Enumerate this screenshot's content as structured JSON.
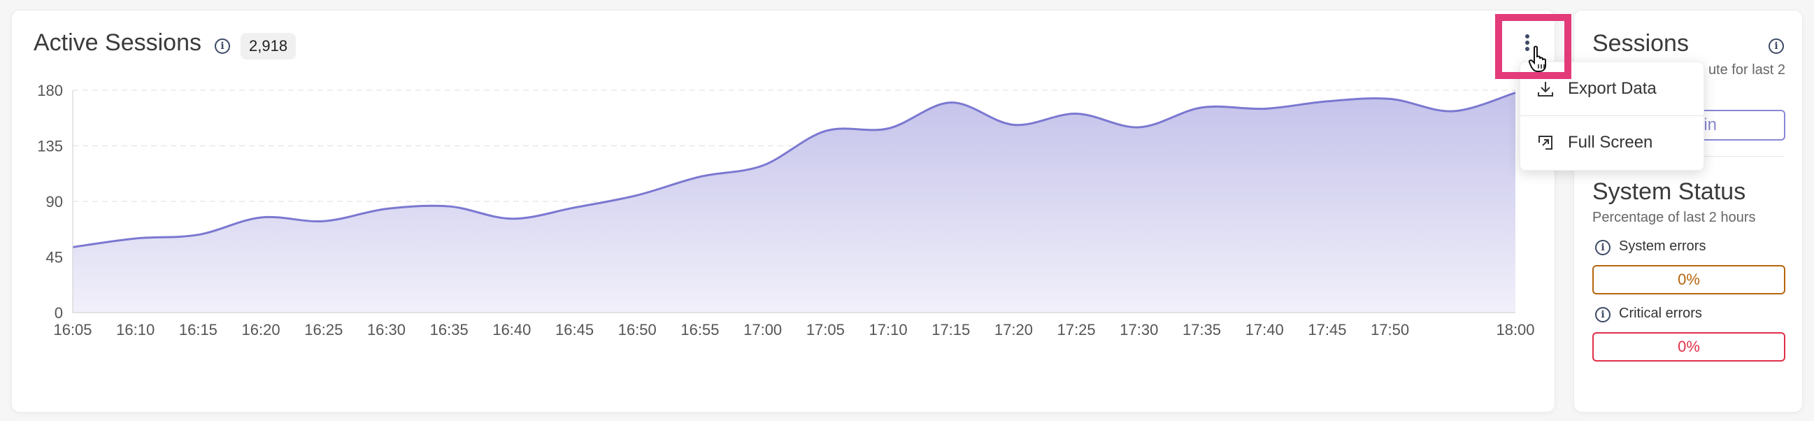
{
  "main": {
    "title": "Active Sessions",
    "total_badge": "2,918",
    "menu_icon": "more-vertical-icon",
    "menu": {
      "items": [
        {
          "label": "Export Data",
          "icon": "download-icon"
        },
        {
          "label": "Full Screen",
          "icon": "expand-icon"
        }
      ]
    }
  },
  "side": {
    "sessions_title": "Sessions",
    "sessions_sub": "ute for last 2",
    "sessions_value": "per min",
    "status_title": "System Status",
    "status_sub": "Percentage of last 2 hours",
    "system_errors_label": "System errors",
    "system_errors_value": "0%",
    "critical_errors_label": "Critical errors",
    "critical_errors_value": "0%"
  },
  "colors": {
    "line": "#7b78d1",
    "highlight": "#e33a7a",
    "warning": "#b5650d",
    "danger": "#e0304a",
    "accent": "#8a87d6"
  },
  "chart_data": {
    "type": "area",
    "x": [
      "16:05",
      "16:10",
      "16:15",
      "16:20",
      "16:25",
      "16:30",
      "16:35",
      "16:40",
      "16:45",
      "16:50",
      "16:55",
      "17:00",
      "17:05",
      "17:10",
      "17:15",
      "17:20",
      "17:25",
      "17:30",
      "17:35",
      "17:40",
      "17:45",
      "17:50",
      "17:55",
      "18:00"
    ],
    "x_tick_labels": [
      "16:05",
      "16:10",
      "16:15",
      "16:20",
      "16:25",
      "16:30",
      "16:35",
      "16:40",
      "16:45",
      "16:50",
      "16:55",
      "17:00",
      "17:05",
      "17:10",
      "17:15",
      "17:20",
      "17:25",
      "17:30",
      "17:35",
      "17:40",
      "17:45",
      "17:50",
      "",
      "18:00"
    ],
    "values": [
      53,
      60,
      63,
      77,
      74,
      84,
      86,
      76,
      85,
      95,
      110,
      119,
      147,
      149,
      170,
      152,
      161,
      150,
      166,
      165,
      171,
      173,
      163,
      178
    ],
    "y_ticks": [
      "0",
      "45",
      "90",
      "135",
      "180"
    ],
    "ylim": [
      0,
      180
    ],
    "grid": true
  }
}
